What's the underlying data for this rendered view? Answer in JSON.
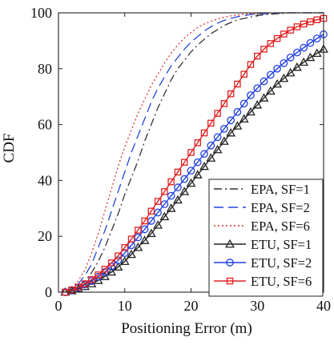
{
  "chart_data": {
    "type": "line",
    "title": "",
    "xlabel": "Positioning Error (m)",
    "ylabel": "CDF",
    "xlim": [
      0,
      40
    ],
    "ylim": [
      0,
      100
    ],
    "xticks": [
      0,
      10,
      20,
      30,
      40
    ],
    "yticks": [
      0,
      20,
      40,
      60,
      80,
      100
    ],
    "grid": false,
    "legend_position": "bottom-right",
    "series": [
      {
        "name": "EPA, SF=1",
        "color": "#333333",
        "style": "dashdot",
        "marker": "none",
        "x": [
          1,
          2,
          3,
          4,
          5,
          6,
          7,
          8,
          9,
          10,
          11,
          12,
          13,
          14,
          15,
          16,
          17,
          18,
          19,
          20,
          21,
          22,
          23,
          24,
          25,
          26,
          27,
          28,
          29,
          30,
          31,
          32,
          33,
          34,
          35,
          40
        ],
        "y": [
          0,
          0.8,
          2,
          4,
          7,
          11,
          16,
          22,
          28,
          35,
          41,
          47,
          54,
          60,
          66,
          71,
          76,
          80,
          83,
          86,
          88.5,
          90.5,
          92.5,
          94,
          95.5,
          96.5,
          97.5,
          98,
          98.5,
          99,
          99.3,
          99.5,
          99.7,
          99.8,
          100,
          100
        ]
      },
      {
        "name": "EPA, SF=2",
        "color": "#2244dd",
        "style": "dash",
        "marker": "none",
        "x": [
          1,
          2,
          3,
          4,
          5,
          6,
          7,
          8,
          9,
          10,
          11,
          12,
          13,
          14,
          15,
          16,
          17,
          18,
          19,
          20,
          21,
          22,
          23,
          24,
          25,
          26,
          27,
          28,
          29,
          30,
          32,
          34,
          40
        ],
        "y": [
          0,
          1,
          3,
          6,
          10,
          16,
          22,
          29,
          36,
          43,
          50,
          56,
          62,
          68,
          73,
          77,
          81,
          84,
          87,
          89.5,
          91.5,
          93.5,
          95,
          96.3,
          97.3,
          98,
          98.6,
          99,
          99.4,
          99.6,
          99.8,
          100,
          100
        ]
      },
      {
        "name": "EPA, SF=6",
        "color": "#dd3333",
        "style": "dot",
        "marker": "none",
        "x": [
          1,
          2,
          3,
          4,
          5,
          6,
          7,
          8,
          9,
          10,
          11,
          12,
          13,
          14,
          15,
          16,
          17,
          18,
          19,
          20,
          21,
          22,
          23,
          24,
          25,
          26,
          27,
          28,
          29,
          30,
          32,
          40
        ],
        "y": [
          0,
          1.5,
          4,
          8,
          14,
          21,
          29,
          37,
          45,
          52,
          58,
          64,
          69,
          74,
          78,
          82,
          85.5,
          88.5,
          91,
          93,
          94.7,
          96,
          97,
          97.8,
          98.4,
          98.9,
          99.2,
          99.5,
          99.7,
          99.8,
          100,
          100
        ]
      },
      {
        "name": "ETU, SF=1",
        "color": "#222222",
        "style": "solid",
        "marker": "triangle",
        "x": [
          1,
          2,
          3,
          4,
          5,
          6,
          7,
          8,
          9,
          10,
          11,
          12,
          13,
          14,
          15,
          16,
          17,
          18,
          19,
          20,
          21,
          22,
          23,
          24,
          25,
          26,
          27,
          28,
          29,
          30,
          31,
          32,
          33,
          34,
          35,
          36,
          37,
          38,
          39,
          40
        ],
        "y": [
          0,
          0.5,
          1.2,
          2,
          3,
          4.2,
          5.6,
          7.2,
          9,
          11,
          13.5,
          16,
          18.5,
          21,
          24,
          27,
          30,
          33,
          36,
          39,
          42,
          45,
          48,
          51,
          54,
          57,
          59.5,
          62,
          64.5,
          67,
          69.5,
          72,
          74.5,
          76.5,
          78.5,
          80.5,
          82.3,
          84,
          85.5,
          87
        ]
      },
      {
        "name": "ETU, SF=2",
        "color": "#1f3fe0",
        "style": "solid",
        "marker": "circle",
        "x": [
          1,
          2,
          3,
          4,
          5,
          6,
          7,
          8,
          9,
          10,
          11,
          12,
          13,
          14,
          15,
          16,
          17,
          18,
          19,
          20,
          21,
          22,
          23,
          24,
          25,
          26,
          27,
          28,
          29,
          30,
          31,
          32,
          33,
          34,
          35,
          36,
          37,
          38,
          39,
          40
        ],
        "y": [
          0,
          0.7,
          1.6,
          2.7,
          4,
          5.5,
          7.2,
          9.2,
          11.4,
          14,
          16.8,
          19.6,
          22.5,
          25.5,
          28.5,
          31.5,
          34.5,
          37.5,
          40.5,
          43.5,
          46.5,
          49.5,
          52.5,
          55.5,
          58.5,
          61.5,
          64.5,
          67.5,
          70.5,
          73,
          75.5,
          77.8,
          80,
          82,
          84,
          85.8,
          87.5,
          89.2,
          90.8,
          92.3
        ]
      },
      {
        "name": "ETU, SF=6",
        "color": "#e02020",
        "style": "solid",
        "marker": "square",
        "x": [
          1,
          2,
          3,
          4,
          5,
          6,
          7,
          8,
          9,
          10,
          11,
          12,
          13,
          14,
          15,
          16,
          17,
          18,
          19,
          20,
          21,
          22,
          23,
          24,
          25,
          26,
          27,
          28,
          29,
          30,
          31,
          32,
          33,
          34,
          35,
          36,
          37,
          38,
          39,
          40
        ],
        "y": [
          0,
          0.8,
          1.8,
          3,
          4.5,
          6.2,
          8.2,
          10.5,
          13,
          16,
          19,
          22.2,
          25.5,
          29,
          32.5,
          36,
          39.5,
          43,
          46.5,
          50,
          53.5,
          57,
          60.5,
          64,
          67.5,
          71,
          74.5,
          78,
          81.5,
          84.5,
          87,
          89,
          90.8,
          92.4,
          93.8,
          95,
          96,
          96.8,
          97.5,
          98
        ]
      }
    ]
  }
}
